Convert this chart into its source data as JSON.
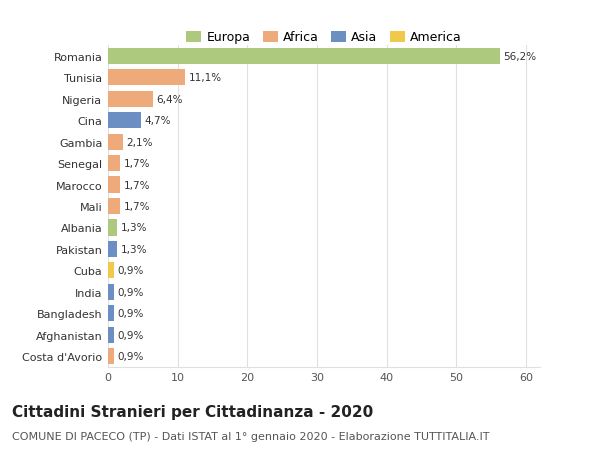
{
  "countries": [
    "Romania",
    "Tunisia",
    "Nigeria",
    "Cina",
    "Gambia",
    "Senegal",
    "Marocco",
    "Mali",
    "Albania",
    "Pakistan",
    "Cuba",
    "India",
    "Bangladesh",
    "Afghanistan",
    "Costa d'Avorio"
  ],
  "values": [
    56.2,
    11.1,
    6.4,
    4.7,
    2.1,
    1.7,
    1.7,
    1.7,
    1.3,
    1.3,
    0.9,
    0.9,
    0.9,
    0.9,
    0.9
  ],
  "labels": [
    "56,2%",
    "11,1%",
    "6,4%",
    "4,7%",
    "2,1%",
    "1,7%",
    "1,7%",
    "1,7%",
    "1,3%",
    "1,3%",
    "0,9%",
    "0,9%",
    "0,9%",
    "0,9%",
    "0,9%"
  ],
  "colors": [
    "#adc97e",
    "#eeaa7b",
    "#eeaa7b",
    "#6b8fc2",
    "#eeaa7b",
    "#eeaa7b",
    "#eeaa7b",
    "#eeaa7b",
    "#adc97e",
    "#6b8fc2",
    "#f0c84a",
    "#6b8fc2",
    "#6b8fc2",
    "#6b8fc2",
    "#eeaa7b"
  ],
  "legend_labels": [
    "Europa",
    "Africa",
    "Asia",
    "America"
  ],
  "legend_colors": [
    "#adc97e",
    "#eeaa7b",
    "#6b8fc2",
    "#f0c84a"
  ],
  "title": "Cittadini Stranieri per Cittadinanza - 2020",
  "subtitle": "COMUNE DI PACECO (TP) - Dati ISTAT al 1° gennaio 2020 - Elaborazione TUTTITALIA.IT",
  "xlim": [
    0,
    62
  ],
  "xticks": [
    0,
    10,
    20,
    30,
    40,
    50,
    60
  ],
  "background_color": "#ffffff",
  "grid_color": "#e0e0e0",
  "bar_height": 0.75,
  "title_fontsize": 11,
  "subtitle_fontsize": 8,
  "label_fontsize": 7.5,
  "tick_fontsize": 8,
  "legend_fontsize": 9
}
